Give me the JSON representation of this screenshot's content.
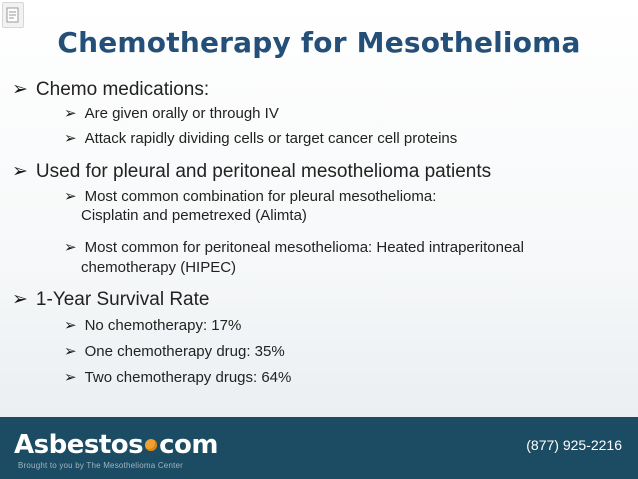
{
  "slide": {
    "title": "Chemotherapy for Mesothelioma",
    "arrow_color": "#1a1a1a",
    "title_color": "#244f78",
    "bullet_glyph": "➢",
    "items": [
      {
        "level": 1,
        "text": "Chemo medications:"
      },
      {
        "level": 2,
        "text": "Are given orally or through IV"
      },
      {
        "level": 2,
        "text": "Attack rapidly dividing cells or target cancer cell proteins"
      },
      {
        "level": 1,
        "text": "Used for pleural and peritoneal mesothelioma patients"
      },
      {
        "level": 2,
        "text": "Most common combination for pleural mesothelioma:"
      },
      {
        "level": 2,
        "text": "Cisplatin and pemetrexed (Alimta)",
        "continuation": true
      },
      {
        "level": 2,
        "text": "Most common for peritoneal mesothelioma: Heated intraperitoneal"
      },
      {
        "level": 2,
        "text": "chemotherapy (HIPEC)",
        "continuation": true
      },
      {
        "level": 1,
        "text": "1-Year Survival Rate"
      },
      {
        "level": 2,
        "text": "No chemotherapy: 17%"
      },
      {
        "level": 2,
        "text": "One chemotherapy drug: 35%"
      },
      {
        "level": 2,
        "text": "Two chemotherapy drugs: 64%"
      }
    ]
  },
  "footer": {
    "logo_main": "Asbestos",
    "logo_suffix": "com",
    "tagline": "Brought to you by The Mesothelioma Center",
    "phone": "(877) 925-2216",
    "background": "#1b4c64"
  }
}
